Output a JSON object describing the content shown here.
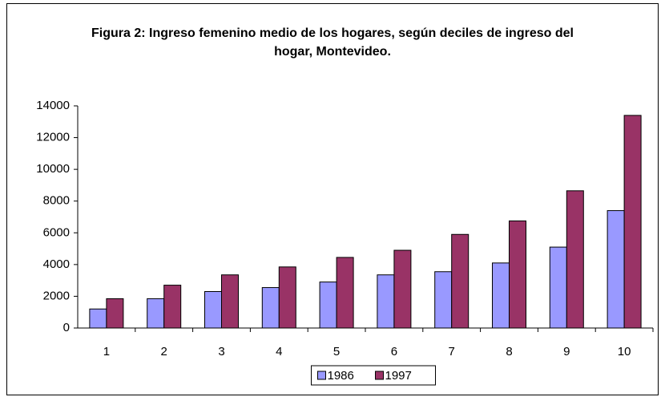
{
  "chart_data": {
    "type": "bar",
    "title": "Figura 2: Ingreso femenino medio de los hogares, según deciles de ingreso del hogar, Montevideo.",
    "categories": [
      "1",
      "2",
      "3",
      "4",
      "5",
      "6",
      "7",
      "8",
      "9",
      "10"
    ],
    "series": [
      {
        "name": "1986",
        "color": "#9999ff",
        "values": [
          1200,
          1850,
          2300,
          2550,
          2900,
          3350,
          3550,
          4100,
          5100,
          7400
        ]
      },
      {
        "name": "1997",
        "color": "#993366",
        "values": [
          1850,
          2700,
          3350,
          3850,
          4450,
          4900,
          5900,
          6750,
          8650,
          13400
        ]
      }
    ],
    "ylim": [
      0,
      14000
    ],
    "yticks": [
      0,
      2000,
      4000,
      6000,
      8000,
      10000,
      12000,
      14000
    ],
    "grid": false,
    "legend": "bottom"
  }
}
